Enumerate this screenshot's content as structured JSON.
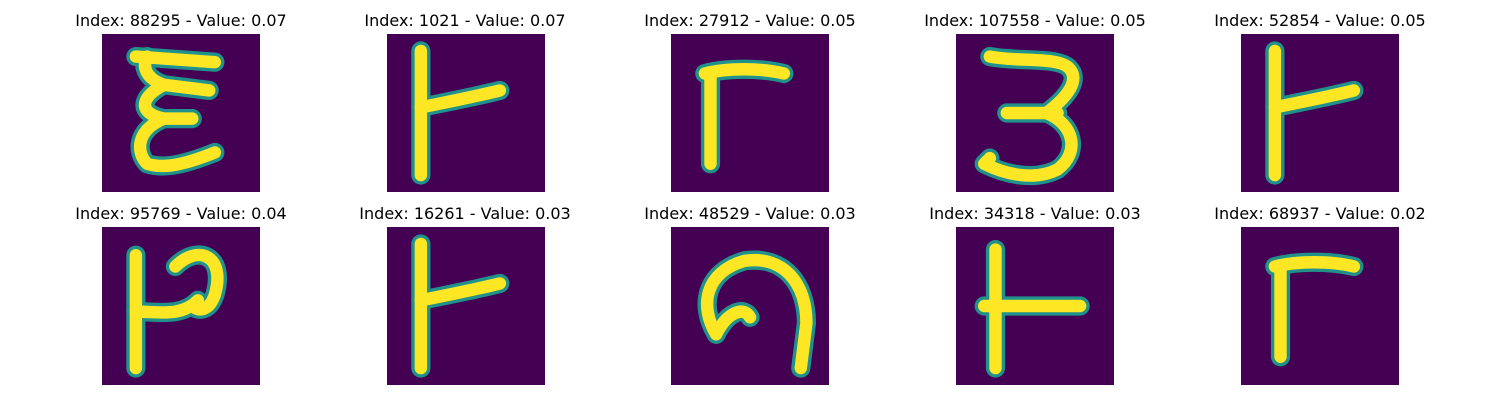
{
  "figure": {
    "colormap": "viridis",
    "background": "#440154",
    "stroke": "#fde725",
    "edge": "#21918c"
  },
  "panels": [
    {
      "index": "88295",
      "value": "0.07",
      "title": "Index: 88295 - Value: 0.07",
      "glyph": "script-E-icon"
    },
    {
      "index": "1021",
      "value": "0.07",
      "title": "Index: 1021 - Value: 0.07",
      "glyph": "stem-with-arm-icon"
    },
    {
      "index": "27912",
      "value": "0.05",
      "title": "Index: 27912 - Value: 0.05",
      "glyph": "gamma-shape-icon"
    },
    {
      "index": "107558",
      "value": "0.05",
      "title": "Index: 107558 - Value: 0.05",
      "glyph": "script-3-icon"
    },
    {
      "index": "52854",
      "value": "0.05",
      "title": "Index: 52854 - Value: 0.05",
      "glyph": "stem-with-arm-icon"
    },
    {
      "index": "95769",
      "value": "0.04",
      "title": "Index: 95769 - Value: 0.04",
      "glyph": "stem-with-hook-icon"
    },
    {
      "index": "16261",
      "value": "0.03",
      "title": "Index: 16261 - Value: 0.03",
      "glyph": "stem-with-arm-icon"
    },
    {
      "index": "48529",
      "value": "0.03",
      "title": "Index: 48529 - Value: 0.03",
      "glyph": "curved-arch-icon"
    },
    {
      "index": "34318",
      "value": "0.03",
      "title": "Index: 34318 - Value: 0.03",
      "glyph": "t-shape-icon"
    },
    {
      "index": "68937",
      "value": "0.02",
      "title": "Index: 68937 - Value: 0.02",
      "glyph": "gamma-shape-icon"
    }
  ]
}
